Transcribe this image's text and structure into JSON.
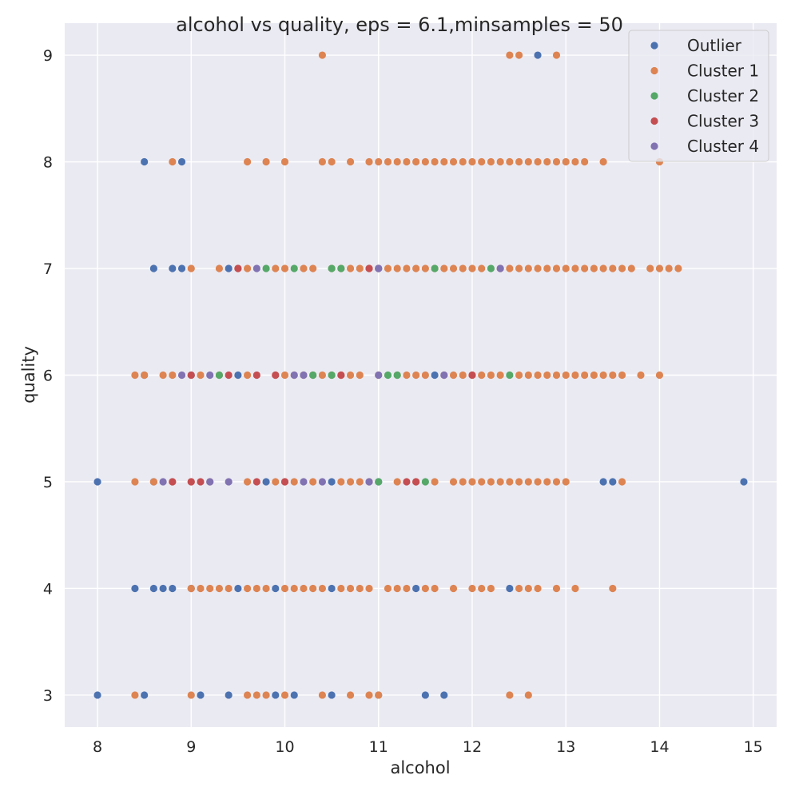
{
  "chart_data": {
    "type": "scatter",
    "title": "alcohol vs quality, eps = 6.1,minsamples = 50",
    "xlabel": "alcohol",
    "ylabel": "quality",
    "xlim": [
      7.65,
      15.25
    ],
    "ylim": [
      2.7,
      9.3
    ],
    "xticks": [
      8,
      9,
      10,
      11,
      12,
      13,
      14,
      15
    ],
    "yticks": [
      3,
      4,
      5,
      6,
      7,
      8,
      9
    ],
    "grid": true,
    "legend_position": "top-right",
    "series": [
      {
        "name": "Outlier",
        "color": "#4c72b0",
        "x": [
          8.0,
          8.5,
          9.1,
          9.4,
          9.9,
          10.1,
          10.5,
          11.0,
          11.5,
          11.7,
          8.4,
          8.6,
          8.7,
          8.8,
          9.0,
          9.5,
          9.9,
          10.5,
          11.4,
          12.4,
          8.0,
          8.6,
          9.8,
          10.5,
          11.0,
          13.4,
          13.5,
          14.9,
          8.5,
          9.0,
          9.5,
          11.6,
          8.6,
          8.8,
          8.9,
          9.4,
          11.0,
          8.5,
          8.9,
          12.7
        ],
        "y": [
          3,
          3,
          3,
          3,
          3,
          3,
          3,
          3,
          3,
          3,
          4,
          4,
          4,
          4,
          4,
          4,
          4,
          4,
          4,
          4,
          5,
          5,
          5,
          5,
          5,
          5,
          5,
          5,
          6,
          6,
          6,
          6,
          7,
          7,
          7,
          7,
          7,
          8,
          8,
          9
        ]
      },
      {
        "name": "Cluster 1",
        "color": "#dd8452",
        "x": [
          8.4,
          9.0,
          9.6,
          9.7,
          9.8,
          10.0,
          10.4,
          10.7,
          10.9,
          11.0,
          12.4,
          12.6,
          9.0,
          9.1,
          9.2,
          9.3,
          9.4,
          9.6,
          9.7,
          9.8,
          10.0,
          10.1,
          10.2,
          10.3,
          10.4,
          10.6,
          10.7,
          10.8,
          10.9,
          11.1,
          11.2,
          11.3,
          11.5,
          11.6,
          11.8,
          12.0,
          12.1,
          12.2,
          12.5,
          12.6,
          12.7,
          12.9,
          13.1,
          13.5,
          8.4,
          8.6,
          8.8,
          9.0,
          9.2,
          9.6,
          9.9,
          10.0,
          10.1,
          10.3,
          10.6,
          10.7,
          10.8,
          10.9,
          11.2,
          11.4,
          11.6,
          11.8,
          11.9,
          12.0,
          12.1,
          12.2,
          12.3,
          12.4,
          12.5,
          12.6,
          12.7,
          12.8,
          12.9,
          13.0,
          13.6,
          8.4,
          8.5,
          8.7,
          8.8,
          9.1,
          9.3,
          9.6,
          9.9,
          10.0,
          10.1,
          10.2,
          10.3,
          10.4,
          10.5,
          10.6,
          10.7,
          10.8,
          11.0,
          11.2,
          11.3,
          11.4,
          11.5,
          11.7,
          11.8,
          11.9,
          12.0,
          12.1,
          12.2,
          12.3,
          12.5,
          12.6,
          12.7,
          12.8,
          12.9,
          13.0,
          13.1,
          13.2,
          13.3,
          13.4,
          13.5,
          13.6,
          13.8,
          14.0,
          9.0,
          9.3,
          9.5,
          9.6,
          9.9,
          10.0,
          10.2,
          10.3,
          10.5,
          10.6,
          10.7,
          10.8,
          10.9,
          11.1,
          11.2,
          11.3,
          11.4,
          11.5,
          11.6,
          11.7,
          11.8,
          11.9,
          12.0,
          12.1,
          12.3,
          12.4,
          12.5,
          12.6,
          12.7,
          12.8,
          12.9,
          13.0,
          13.1,
          13.2,
          13.3,
          13.4,
          13.5,
          13.6,
          13.7,
          13.9,
          14.0,
          14.1,
          14.2,
          8.8,
          9.6,
          9.8,
          10.0,
          10.4,
          10.5,
          10.7,
          10.9,
          11.0,
          11.1,
          11.2,
          11.3,
          11.4,
          11.5,
          11.6,
          11.7,
          11.8,
          11.9,
          12.0,
          12.1,
          12.2,
          12.3,
          12.4,
          12.5,
          12.6,
          12.7,
          12.8,
          12.9,
          13.0,
          13.1,
          13.2,
          13.4,
          14.0,
          10.4,
          12.4,
          12.5,
          12.9
        ],
        "y": [
          3,
          3,
          3,
          3,
          3,
          3,
          3,
          3,
          3,
          3,
          3,
          3,
          4,
          4,
          4,
          4,
          4,
          4,
          4,
          4,
          4,
          4,
          4,
          4,
          4,
          4,
          4,
          4,
          4,
          4,
          4,
          4,
          4,
          4,
          4,
          4,
          4,
          4,
          4,
          4,
          4,
          4,
          4,
          4,
          5,
          5,
          5,
          5,
          5,
          5,
          5,
          5,
          5,
          5,
          5,
          5,
          5,
          5,
          5,
          5,
          5,
          5,
          5,
          5,
          5,
          5,
          5,
          5,
          5,
          5,
          5,
          5,
          5,
          5,
          5,
          6,
          6,
          6,
          6,
          6,
          6,
          6,
          6,
          6,
          6,
          6,
          6,
          6,
          6,
          6,
          6,
          6,
          6,
          6,
          6,
          6,
          6,
          6,
          6,
          6,
          6,
          6,
          6,
          6,
          6,
          6,
          6,
          6,
          6,
          6,
          6,
          6,
          6,
          6,
          6,
          6,
          6,
          6,
          7,
          7,
          7,
          7,
          7,
          7,
          7,
          7,
          7,
          7,
          7,
          7,
          7,
          7,
          7,
          7,
          7,
          7,
          7,
          7,
          7,
          7,
          7,
          7,
          7,
          7,
          7,
          7,
          7,
          7,
          7,
          7,
          7,
          7,
          7,
          7,
          7,
          7,
          7,
          7,
          7,
          7,
          7,
          8,
          8,
          8,
          8,
          8,
          8,
          8,
          8,
          8,
          8,
          8,
          8,
          8,
          8,
          8,
          8,
          8,
          8,
          8,
          8,
          8,
          8,
          8,
          8,
          8,
          8,
          8,
          8,
          8,
          8,
          8,
          8,
          8,
          9,
          9,
          9,
          9
        ]
      },
      {
        "name": "Cluster 2",
        "color": "#55a868",
        "x": [
          11.0,
          11.5,
          9.3,
          10.3,
          10.5,
          11.2,
          11.1,
          12.4,
          9.8,
          10.1,
          10.5,
          10.6,
          11.6,
          12.2
        ],
        "y": [
          5,
          5,
          6,
          6,
          6,
          6,
          6,
          6,
          7,
          7,
          7,
          7,
          7,
          7
        ]
      },
      {
        "name": "Cluster 3",
        "color": "#c44e52",
        "x": [
          8.8,
          9.0,
          9.1,
          9.7,
          10.0,
          11.3,
          11.4,
          9.0,
          9.4,
          9.7,
          9.9,
          10.6,
          12.0,
          9.5,
          10.9,
          11.0
        ],
        "y": [
          5,
          5,
          5,
          5,
          5,
          5,
          5,
          6,
          6,
          6,
          6,
          6,
          6,
          7,
          7,
          7
        ]
      },
      {
        "name": "Cluster 4",
        "color": "#8172b2",
        "x": [
          8.7,
          9.2,
          9.4,
          10.2,
          10.4,
          10.9,
          8.9,
          9.2,
          10.1,
          10.2,
          11.0,
          11.7,
          9.7,
          11.0,
          12.3
        ],
        "y": [
          5,
          5,
          5,
          5,
          5,
          5,
          6,
          6,
          6,
          6,
          6,
          6,
          7,
          7,
          7
        ]
      }
    ]
  }
}
